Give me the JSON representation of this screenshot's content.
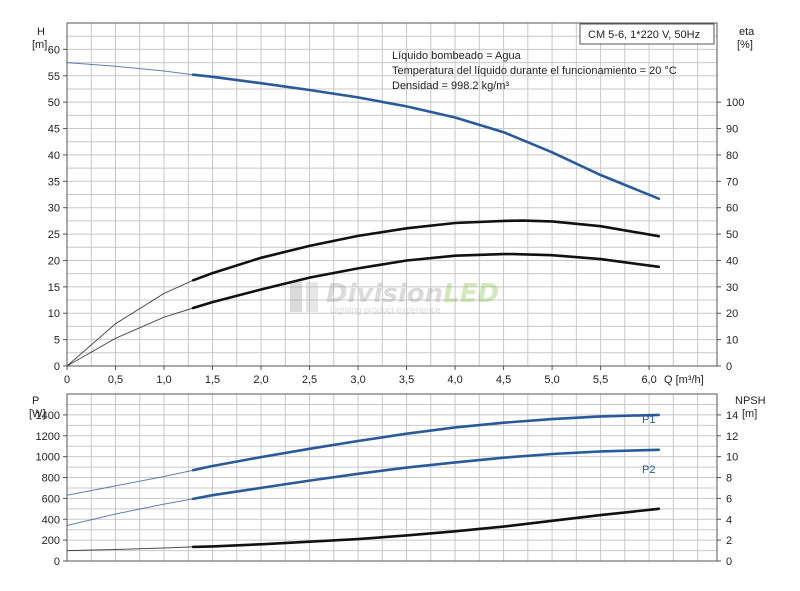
{
  "chart_data": [
    {
      "type": "line",
      "title": "CM 5-6, 1*220 V, 50Hz",
      "notes": [
        "Líquido bombeado = Agua",
        "Temperatura del líquido durante el funcionamiento = 20 °C",
        "Densidad = 998.2 kg/m³"
      ],
      "xlabel": "Q [m³/h]",
      "xlim": [
        0,
        6.7
      ],
      "xticks": [
        "0",
        "0,5",
        "1,0",
        "1,5",
        "2,0",
        "2,5",
        "3,0",
        "3,5",
        "4,0",
        "4,5",
        "5,0",
        "5,5",
        "6,0"
      ],
      "ylabel": "H\n[m]",
      "ylim": [
        0,
        65
      ],
      "yticks": [
        0,
        5,
        10,
        15,
        20,
        25,
        30,
        35,
        40,
        45,
        50,
        55,
        60
      ],
      "y2label": "eta\n[%]",
      "y2lim": [
        0,
        130
      ],
      "y2ticks": [
        0,
        10,
        20,
        30,
        40,
        50,
        60,
        70,
        80,
        90,
        100
      ],
      "grid": true,
      "series": [
        {
          "axis": "left",
          "color": "#2a5a9a",
          "x": [
            0,
            0.5,
            1.0,
            1.3,
            1.5,
            2.0,
            2.5,
            3.0,
            3.5,
            4.0,
            4.5,
            5.0,
            5.5,
            6.1
          ],
          "y": [
            57.5,
            56.8,
            55.9,
            55.2,
            54.8,
            53.6,
            52.3,
            50.9,
            49.2,
            47.1,
            44.3,
            40.5,
            36.2,
            31.7
          ],
          "operating_from": 1.3
        },
        {
          "axis": "right",
          "color": "#111111",
          "x": [
            0,
            0.5,
            1.0,
            1.3,
            1.5,
            2.0,
            2.5,
            3.0,
            3.5,
            4.0,
            4.5,
            4.7,
            5.0,
            5.5,
            6.1
          ],
          "y": [
            0,
            16,
            27.5,
            32.5,
            35.2,
            41,
            45.5,
            49.3,
            52.2,
            54.2,
            55,
            55.1,
            54.8,
            53,
            49.2
          ],
          "operating_from": 1.3
        },
        {
          "axis": "right",
          "color": "#111111",
          "x": [
            0,
            0.5,
            1.0,
            1.3,
            1.5,
            2.0,
            2.5,
            3.0,
            3.5,
            4.0,
            4.5,
            4.6,
            5.0,
            5.5,
            6.1
          ],
          "y": [
            0,
            10.5,
            18.5,
            22,
            24.2,
            29,
            33.5,
            37,
            40,
            41.8,
            42.4,
            42.4,
            42,
            40.5,
            37.6
          ],
          "operating_from": 1.3
        }
      ]
    },
    {
      "type": "line",
      "xlim": [
        0,
        6.7
      ],
      "ylabel": "P\n[W]",
      "ylim": [
        0,
        1600
      ],
      "yticks": [
        0,
        200,
        400,
        600,
        800,
        1000,
        1200,
        1400
      ],
      "y2label": "NPSH\n[m]",
      "y2lim": [
        0,
        16
      ],
      "y2ticks": [
        0,
        2,
        4,
        6,
        8,
        10,
        12,
        14
      ],
      "grid": true,
      "series": [
        {
          "name": "P1",
          "axis": "left",
          "color": "#2a5a9a",
          "x": [
            0,
            0.5,
            1.0,
            1.3,
            1.5,
            2.0,
            2.5,
            3.0,
            3.5,
            4.0,
            4.5,
            5.0,
            5.5,
            6.1
          ],
          "y": [
            630,
            720,
            810,
            870,
            910,
            995,
            1075,
            1150,
            1220,
            1280,
            1325,
            1360,
            1385,
            1400
          ],
          "operating_from": 1.3
        },
        {
          "name": "P2",
          "axis": "left",
          "color": "#2a5a9a",
          "x": [
            0,
            0.5,
            1.0,
            1.3,
            1.5,
            2.0,
            2.5,
            3.0,
            3.5,
            4.0,
            4.5,
            5.0,
            5.5,
            6.1
          ],
          "y": [
            340,
            450,
            545,
            595,
            630,
            700,
            770,
            835,
            895,
            945,
            990,
            1025,
            1050,
            1065
          ],
          "operating_from": 1.3
        },
        {
          "axis": "right",
          "color": "#111111",
          "x": [
            0,
            0.5,
            1.0,
            1.3,
            1.5,
            2.0,
            2.5,
            3.0,
            3.5,
            4.0,
            4.5,
            5.0,
            5.5,
            6.1
          ],
          "y": [
            1.0,
            1.1,
            1.25,
            1.35,
            1.4,
            1.6,
            1.85,
            2.1,
            2.45,
            2.85,
            3.3,
            3.85,
            4.4,
            5.0
          ],
          "operating_from": 1.3
        }
      ]
    }
  ],
  "watermark": {
    "brand_a": "Division",
    "brand_b": "LED",
    "tagline": "Lighting product experience"
  }
}
